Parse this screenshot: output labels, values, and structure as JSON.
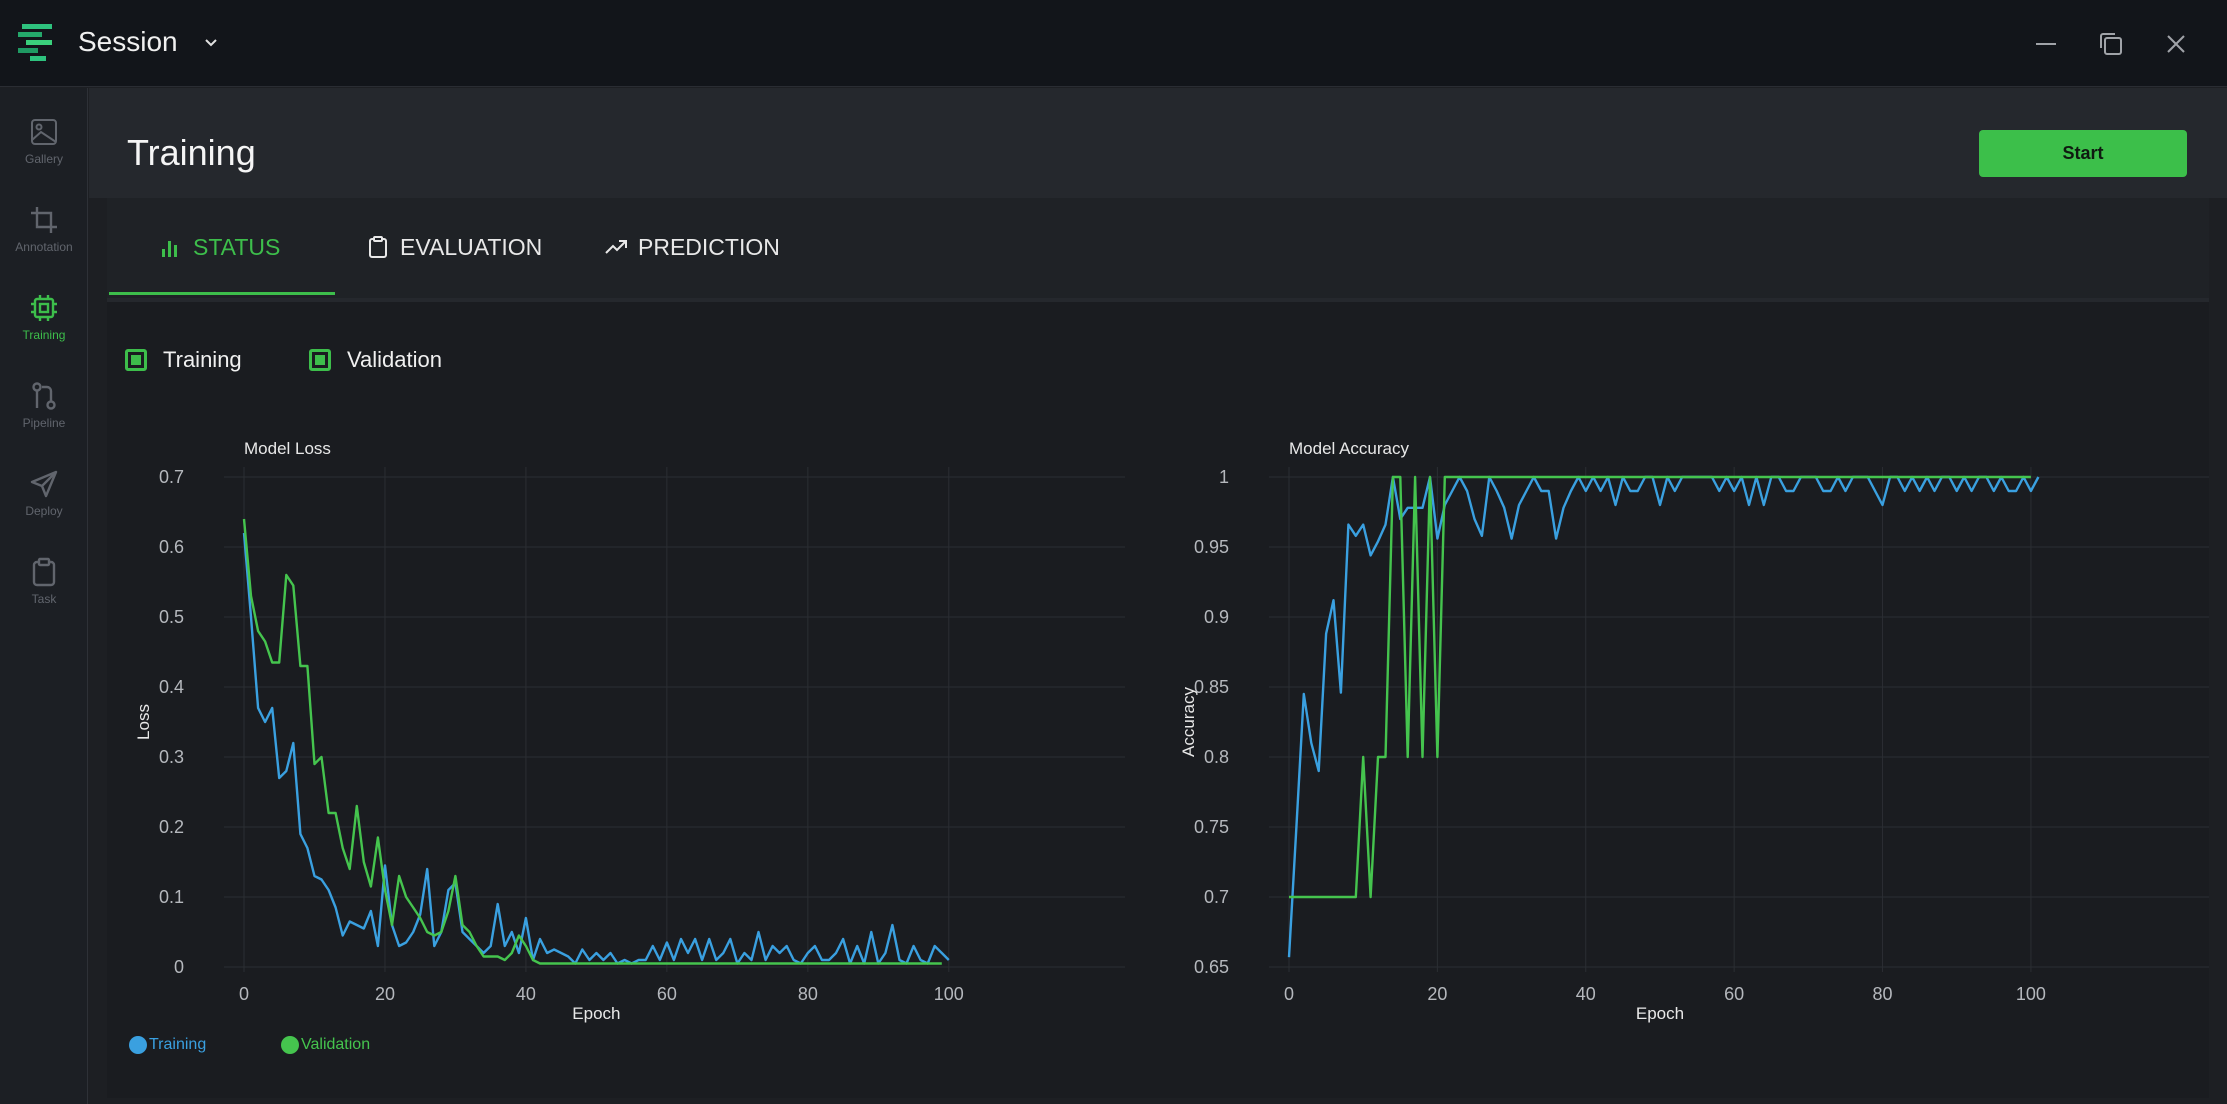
{
  "titlebar": {
    "session": "Session"
  },
  "sidebar": {
    "items": [
      {
        "label": "Gallery",
        "icon": "image-icon"
      },
      {
        "label": "Annotation",
        "icon": "crop-icon"
      },
      {
        "label": "Training",
        "icon": "chip-icon",
        "active": true
      },
      {
        "label": "Pipeline",
        "icon": "git-pull-icon"
      },
      {
        "label": "Deploy",
        "icon": "send-icon"
      },
      {
        "label": "Task",
        "icon": "clipboard-icon"
      }
    ]
  },
  "header": {
    "title": "Training",
    "start_label": "Start"
  },
  "tabs": [
    {
      "label": "STATUS",
      "icon": "bar-chart-icon",
      "active": true
    },
    {
      "label": "EVALUATION",
      "icon": "clipboard-icon"
    },
    {
      "label": "PREDICTION",
      "icon": "trending-up-icon"
    }
  ],
  "toggles": {
    "training_label": "Training",
    "validation_label": "Validation"
  },
  "bottom_legend": {
    "training_label": "Training",
    "validation_label": "Validation"
  },
  "colors": {
    "accent": "#3dbe4b",
    "training": "#3aa0e0",
    "validation": "#45c44e"
  },
  "chart_data": [
    {
      "type": "line",
      "title": "Model Loss",
      "xlabel": "Epoch",
      "ylabel": "Loss",
      "xlim": [
        0,
        125
      ],
      "ylim": [
        0,
        0.7
      ],
      "xticks": [
        0,
        20,
        40,
        60,
        80,
        100
      ],
      "yticks": [
        0,
        0.1,
        0.2,
        0.3,
        0.4,
        0.5,
        0.6,
        0.7
      ],
      "series": [
        {
          "name": "Training",
          "values": [
            0.62,
            0.5,
            0.37,
            0.35,
            0.37,
            0.27,
            0.28,
            0.32,
            0.19,
            0.17,
            0.13,
            0.125,
            0.11,
            0.085,
            0.045,
            0.065,
            0.06,
            0.055,
            0.08,
            0.03,
            0.145,
            0.06,
            0.03,
            0.035,
            0.05,
            0.075,
            0.14,
            0.03,
            0.05,
            0.11,
            0.12,
            0.05,
            0.04,
            0.03,
            0.02,
            0.03,
            0.09,
            0.03,
            0.05,
            0.02,
            0.07,
            0.01,
            0.04,
            0.02,
            0.025,
            0.02,
            0.015,
            0.005,
            0.025,
            0.01,
            0.02,
            0.01,
            0.02,
            0.005,
            0.01,
            0.005,
            0.01,
            0.01,
            0.03,
            0.01,
            0.035,
            0.01,
            0.04,
            0.02,
            0.04,
            0.01,
            0.04,
            0.01,
            0.02,
            0.04,
            0.005,
            0.02,
            0.01,
            0.05,
            0.01,
            0.03,
            0.02,
            0.03,
            0.01,
            0.005,
            0.02,
            0.03,
            0.01,
            0.01,
            0.02,
            0.04,
            0.005,
            0.03,
            0.005,
            0.05,
            0.005,
            0.02,
            0.06,
            0.01,
            0.005,
            0.03,
            0.01,
            0.005,
            0.03,
            0.02,
            0.01
          ]
        },
        {
          "name": "Validation",
          "values": [
            0.64,
            0.53,
            0.48,
            0.465,
            0.435,
            0.435,
            0.56,
            0.545,
            0.43,
            0.43,
            0.29,
            0.3,
            0.22,
            0.22,
            0.17,
            0.14,
            0.23,
            0.15,
            0.115,
            0.185,
            0.11,
            0.06,
            0.13,
            0.1,
            0.085,
            0.07,
            0.05,
            0.045,
            0.05,
            0.08,
            0.13,
            0.06,
            0.05,
            0.03,
            0.015,
            0.015,
            0.015,
            0.01,
            0.02,
            0.045,
            0.03,
            0.01,
            0.005,
            0.005,
            0.005,
            0.005,
            0.005,
            0.005,
            0.005,
            0.005,
            0.005,
            0.005,
            0.005,
            0.005,
            0.005,
            0.005,
            0.005,
            0.005,
            0.005,
            0.005,
            0.005,
            0.005,
            0.005,
            0.005,
            0.005,
            0.005,
            0.005,
            0.005,
            0.005,
            0.005,
            0.005,
            0.005,
            0.005,
            0.005,
            0.005,
            0.005,
            0.005,
            0.005,
            0.005,
            0.005,
            0.005,
            0.005,
            0.005,
            0.005,
            0.005,
            0.005,
            0.005,
            0.005,
            0.005,
            0.005,
            0.005,
            0.005,
            0.005,
            0.005,
            0.005,
            0.005,
            0.005,
            0.005,
            0.005,
            0.005
          ]
        }
      ]
    },
    {
      "type": "line",
      "title": "Model Accuracy",
      "xlabel": "Epoch",
      "ylabel": "Accuracy",
      "xlim": [
        0,
        124
      ],
      "ylim": [
        0.65,
        1
      ],
      "xticks": [
        0,
        20,
        40,
        60,
        80,
        100
      ],
      "yticks": [
        0.65,
        0.7,
        0.75,
        0.8,
        0.85,
        0.9,
        0.95,
        1
      ],
      "ytick_labels": [
        "0.65",
        "0.7",
        "0.75",
        "0.8",
        "0.85",
        "0.9",
        "0.95",
        "1"
      ],
      "series": [
        {
          "name": "Training",
          "values": [
            0.657,
            0.75,
            0.845,
            0.81,
            0.79,
            0.888,
            0.912,
            0.846,
            0.966,
            0.958,
            0.966,
            0.944,
            0.954,
            0.966,
            1,
            0.97,
            0.978,
            0.978,
            0.978,
            1,
            0.956,
            0.98,
            0.99,
            1,
            0.99,
            0.97,
            0.958,
            1,
            0.99,
            0.978,
            0.956,
            0.98,
            0.99,
            1,
            0.99,
            0.99,
            0.956,
            0.978,
            0.99,
            1,
            0.99,
            1,
            0.99,
            1,
            0.98,
            1,
            0.99,
            0.99,
            1,
            1,
            0.98,
            1,
            0.99,
            1,
            1,
            1,
            1,
            1,
            0.99,
            1,
            0.99,
            1,
            0.98,
            1,
            0.98,
            1,
            1,
            0.99,
            0.99,
            1,
            1,
            1,
            0.99,
            0.99,
            1,
            0.99,
            1,
            1,
            1,
            0.99,
            0.98,
            1,
            1,
            0.99,
            1,
            0.99,
            1,
            0.99,
            1,
            1,
            0.99,
            1,
            0.99,
            1,
            1,
            0.99,
            1,
            0.99,
            0.99,
            1,
            0.99,
            1
          ]
        },
        {
          "name": "Validation",
          "values": [
            0.7,
            0.7,
            0.7,
            0.7,
            0.7,
            0.7,
            0.7,
            0.7,
            0.7,
            0.7,
            0.8,
            0.7,
            0.8,
            0.8,
            1,
            1,
            0.8,
            1,
            0.8,
            1,
            0.8,
            1,
            1,
            1,
            1,
            1,
            1,
            1,
            1,
            1,
            1,
            1,
            1,
            1,
            1,
            1,
            1,
            1,
            1,
            1,
            1,
            1,
            1,
            1,
            1,
            1,
            1,
            1,
            1,
            1,
            1,
            1,
            1,
            1,
            1,
            1,
            1,
            1,
            1,
            1,
            1,
            1,
            1,
            1,
            1,
            1,
            1,
            1,
            1,
            1,
            1,
            1,
            1,
            1,
            1,
            1,
            1,
            1,
            1,
            1,
            1,
            1,
            1,
            1,
            1,
            1,
            1,
            1,
            1,
            1,
            1,
            1,
            1,
            1,
            1,
            1,
            1,
            1,
            1,
            1,
            1
          ]
        }
      ]
    }
  ]
}
